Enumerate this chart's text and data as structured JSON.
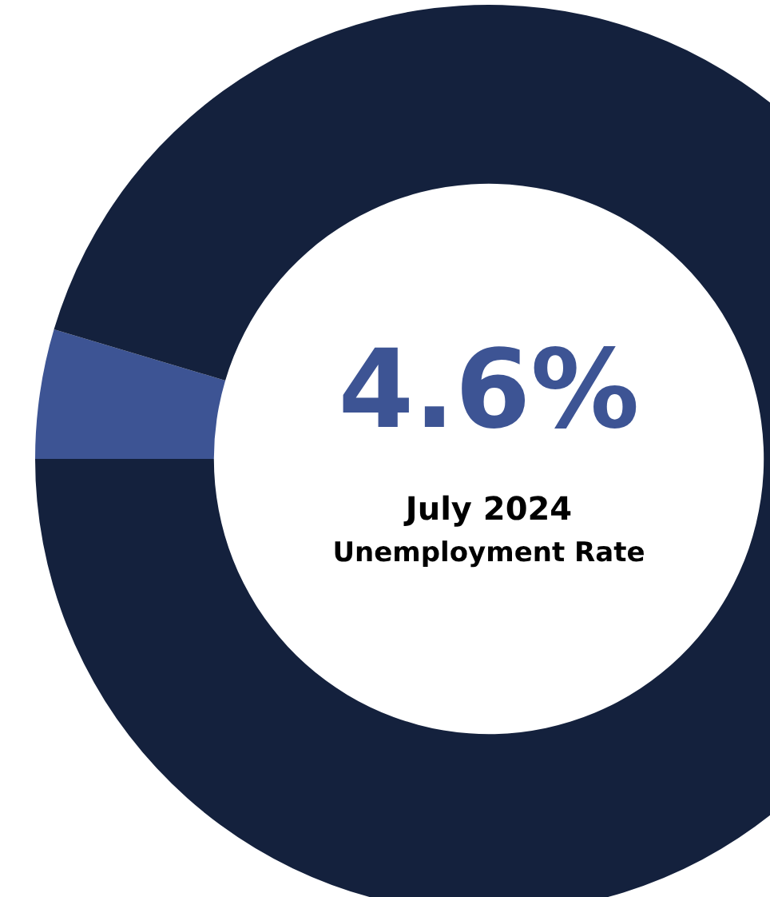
{
  "chart_data": {
    "type": "donut",
    "title": "July 2024",
    "subtitle": "Unemployment Rate",
    "categories": [
      null,
      null
    ],
    "values": [
      4.6,
      95.4
    ],
    "colors": [
      "#3d5494",
      "#14213d"
    ],
    "annotations": [
      "4.6%"
    ],
    "legend": false
  }
}
